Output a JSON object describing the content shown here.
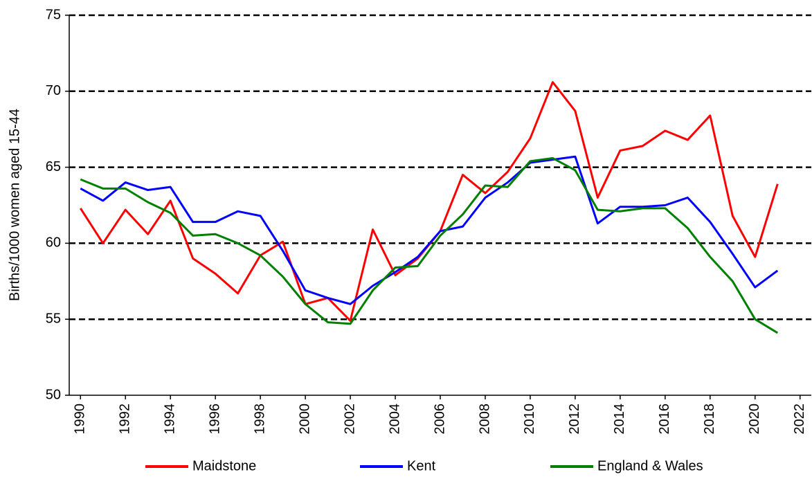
{
  "chart_data": {
    "type": "line",
    "y_label": "Births/1000 women aged 15-44",
    "x": [
      1990,
      1991,
      1992,
      1993,
      1994,
      1995,
      1996,
      1997,
      1998,
      1999,
      2000,
      2001,
      2002,
      2003,
      2004,
      2005,
      2006,
      2007,
      2008,
      2009,
      2010,
      2011,
      2012,
      2013,
      2014,
      2015,
      2016,
      2017,
      2018,
      2019,
      2020,
      2021
    ],
    "series": [
      {
        "name": "Maidstone",
        "color": "#ff0000",
        "values": [
          62.3,
          60.0,
          62.2,
          60.6,
          62.8,
          59.0,
          58.0,
          56.7,
          59.2,
          60.1,
          56.0,
          56.4,
          54.9,
          60.9,
          57.9,
          59.0,
          60.8,
          64.5,
          63.3,
          64.7,
          66.9,
          70.6,
          68.7,
          63.0,
          66.1,
          66.4,
          67.4,
          66.8,
          68.4,
          61.8,
          59.1,
          63.9
        ]
      },
      {
        "name": "Kent",
        "color": "#0000ff",
        "values": [
          63.6,
          62.8,
          64.0,
          63.5,
          63.7,
          61.4,
          61.4,
          62.1,
          61.8,
          59.5,
          56.9,
          56.4,
          56.0,
          57.2,
          58.1,
          59.1,
          60.8,
          61.1,
          63.0,
          64.0,
          65.3,
          65.5,
          65.7,
          61.3,
          62.4,
          62.4,
          62.5,
          63.0,
          61.4,
          59.3,
          57.1,
          58.2
        ]
      },
      {
        "name": "England & Wales",
        "color": "#008000",
        "values": [
          64.2,
          63.6,
          63.6,
          62.7,
          62.0,
          60.5,
          60.6,
          60.0,
          59.2,
          57.8,
          56.0,
          54.8,
          54.7,
          56.9,
          58.4,
          58.5,
          60.5,
          61.9,
          63.8,
          63.7,
          65.4,
          65.6,
          64.8,
          62.2,
          62.1,
          62.3,
          62.3,
          61.0,
          59.1,
          57.5,
          55.0,
          54.1
        ]
      }
    ],
    "xlim": [
      1989.5,
      2022.5
    ],
    "xticks": [
      1990,
      1992,
      1994,
      1996,
      1998,
      2000,
      2002,
      2004,
      2006,
      2008,
      2010,
      2012,
      2014,
      2016,
      2018,
      2020,
      2022
    ],
    "ylim": [
      50,
      75
    ],
    "yticks": [
      50,
      55,
      60,
      65,
      70,
      75
    ],
    "grid": true,
    "legend": "bottom"
  }
}
